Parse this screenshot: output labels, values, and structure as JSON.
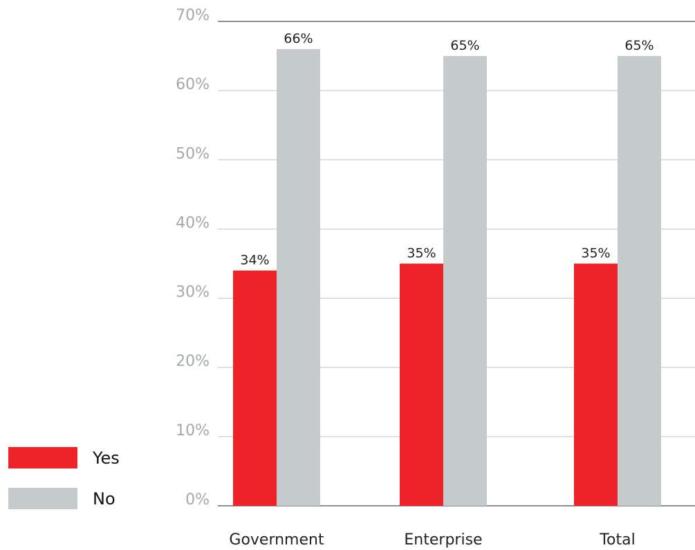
{
  "chart_data": {
    "type": "bar",
    "categories": [
      "Government",
      "Enterprise",
      "Total"
    ],
    "series": [
      {
        "name": "Yes",
        "values": [
          34,
          35,
          35
        ],
        "labels": [
          "34%",
          "35%",
          "35%"
        ],
        "color": "#ee2329"
      },
      {
        "name": "No",
        "values": [
          66,
          65,
          65
        ],
        "labels": [
          "66%",
          "65%",
          "65%"
        ],
        "color": "#c5cacd"
      }
    ],
    "ylim": [
      0,
      70
    ],
    "yticks": [
      0,
      10,
      20,
      30,
      40,
      50,
      60,
      70
    ],
    "ytick_labels": [
      "0%",
      "10%",
      "20%",
      "30%",
      "40%",
      "50%",
      "60%",
      "70%"
    ],
    "grid": true,
    "legend_position": "bottom-left",
    "colors": {
      "grid": "#bfc3c6",
      "top_rule": "#8a8f93",
      "axis": "#8a8f93",
      "tick_text": "#a4a8ab"
    }
  }
}
